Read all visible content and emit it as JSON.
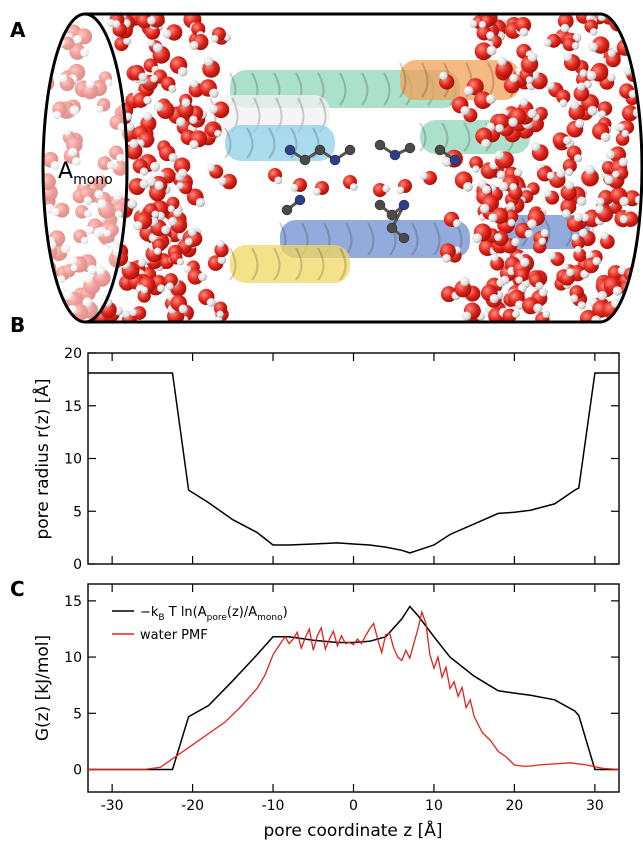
{
  "panel_labels": [
    "A",
    "B",
    "C"
  ],
  "illustration": {
    "label_main": "A",
    "label_sub": "mono",
    "colors": {
      "oxygen": "#e0231c",
      "hydrogen": "#e6e6e6",
      "helix_green": "#8fd6b8",
      "helix_orange": "#f2a25a",
      "helix_blue": "#6f8fd0",
      "helix_yellow": "#f0d860",
      "helix_white": "#f2f2f2",
      "helix_cyan": "#8fd0e8"
    }
  },
  "chart_data": [
    {
      "type": "line",
      "panel": "B",
      "title": "",
      "xlabel": "",
      "ylabel": "pore radius r(z) [Å]",
      "xlim": [
        -33,
        33
      ],
      "ylim": [
        0,
        20
      ],
      "yticks": [
        0,
        5,
        10,
        15,
        20
      ],
      "series": [
        {
          "color": "#000000",
          "x": [
            -33,
            -22.5,
            -20.5,
            -18,
            -15,
            -12,
            -10,
            -8,
            -5,
            -2,
            0,
            2,
            4,
            6,
            7,
            8,
            10,
            12,
            15,
            18,
            20,
            22,
            25,
            27.5,
            28,
            30,
            33
          ],
          "y": [
            18.1,
            18.1,
            7,
            5.8,
            4.2,
            3,
            1.8,
            1.8,
            1.9,
            2,
            1.9,
            1.8,
            1.6,
            1.3,
            1.05,
            1.3,
            1.8,
            2.8,
            3.8,
            4.8,
            4.9,
            5.1,
            5.7,
            7,
            7.2,
            18.1,
            18.1
          ]
        }
      ]
    },
    {
      "type": "line",
      "panel": "C",
      "title": "",
      "xlabel": "pore coordinate z [Å]",
      "ylabel": "G(z) [kJ/mol]",
      "xlim": [
        -33,
        33
      ],
      "ylim": [
        -2,
        16.5
      ],
      "yticks": [
        0,
        5,
        10,
        15
      ],
      "xticks": [
        -30,
        -20,
        -10,
        0,
        10,
        20,
        30
      ],
      "legend_position": "top-left",
      "series": [
        {
          "name_main": "−k",
          "name_sub1": "B",
          "name_mid": " T ln(A",
          "name_sub2": "pore",
          "name_mid2": "(z)/A",
          "name_sub3": "mono",
          "name_end": ")",
          "color": "#000000",
          "x": [
            -33,
            -22.5,
            -20.5,
            -18,
            -15,
            -12,
            -10,
            -8,
            -5,
            -2,
            0,
            2,
            4,
            6,
            7,
            8,
            10,
            12,
            15,
            18,
            20,
            22,
            25,
            27.5,
            28,
            30,
            33
          ],
          "y": [
            0,
            0,
            4.7,
            5.7,
            7.9,
            10.2,
            11.8,
            11.8,
            11.5,
            11.3,
            11.3,
            11.4,
            11.8,
            13.4,
            14.5,
            13.7,
            11.8,
            10,
            8.3,
            7,
            6.8,
            6.6,
            6.2,
            5.2,
            4.8,
            0,
            0
          ]
        },
        {
          "name": "water PMF",
          "color": "#e0231c",
          "x": [
            -33,
            -26,
            -24,
            -22,
            -20,
            -18,
            -16,
            -14,
            -12,
            -11,
            -10,
            -9,
            -8.5,
            -8,
            -7.5,
            -7,
            -6.5,
            -6,
            -5.5,
            -5,
            -4.5,
            -4,
            -3.5,
            -3,
            -2.5,
            -2,
            -1.5,
            -1,
            -0.5,
            0,
            0.5,
            1,
            1.5,
            2,
            2.5,
            3,
            3.5,
            4,
            4.5,
            5,
            5.5,
            6,
            6.5,
            7,
            7.5,
            8,
            8.5,
            9,
            9.5,
            10,
            10.5,
            11,
            11.5,
            12,
            12.5,
            13,
            13.5,
            14,
            14.5,
            15,
            16,
            17,
            18,
            19,
            20,
            21,
            22,
            23,
            25,
            27,
            29,
            31,
            33
          ],
          "y": [
            0,
            0,
            0.2,
            1.2,
            2.2,
            3.2,
            4.2,
            5.6,
            7.2,
            8.4,
            10.2,
            11.3,
            11.8,
            11.2,
            11.6,
            12.2,
            10.8,
            11.7,
            12.5,
            10.6,
            11.9,
            12.6,
            10.7,
            11.6,
            12.3,
            11.0,
            11.9,
            11.2,
            11.3,
            11.1,
            11.6,
            11.2,
            11.9,
            12.5,
            13.0,
            11.6,
            10.4,
            12.0,
            12.1,
            10.8,
            10.0,
            9.7,
            10.6,
            9.9,
            11.2,
            12.5,
            14.0,
            13.0,
            10.2,
            9.0,
            10.0,
            8.2,
            9.1,
            7.2,
            7.8,
            6.5,
            7.3,
            5.5,
            6.2,
            4.7,
            3.3,
            2.6,
            1.6,
            1.1,
            0.4,
            0.3,
            0.3,
            0.4,
            0.5,
            0.6,
            0.4,
            0.1,
            0.0
          ]
        }
      ]
    }
  ]
}
